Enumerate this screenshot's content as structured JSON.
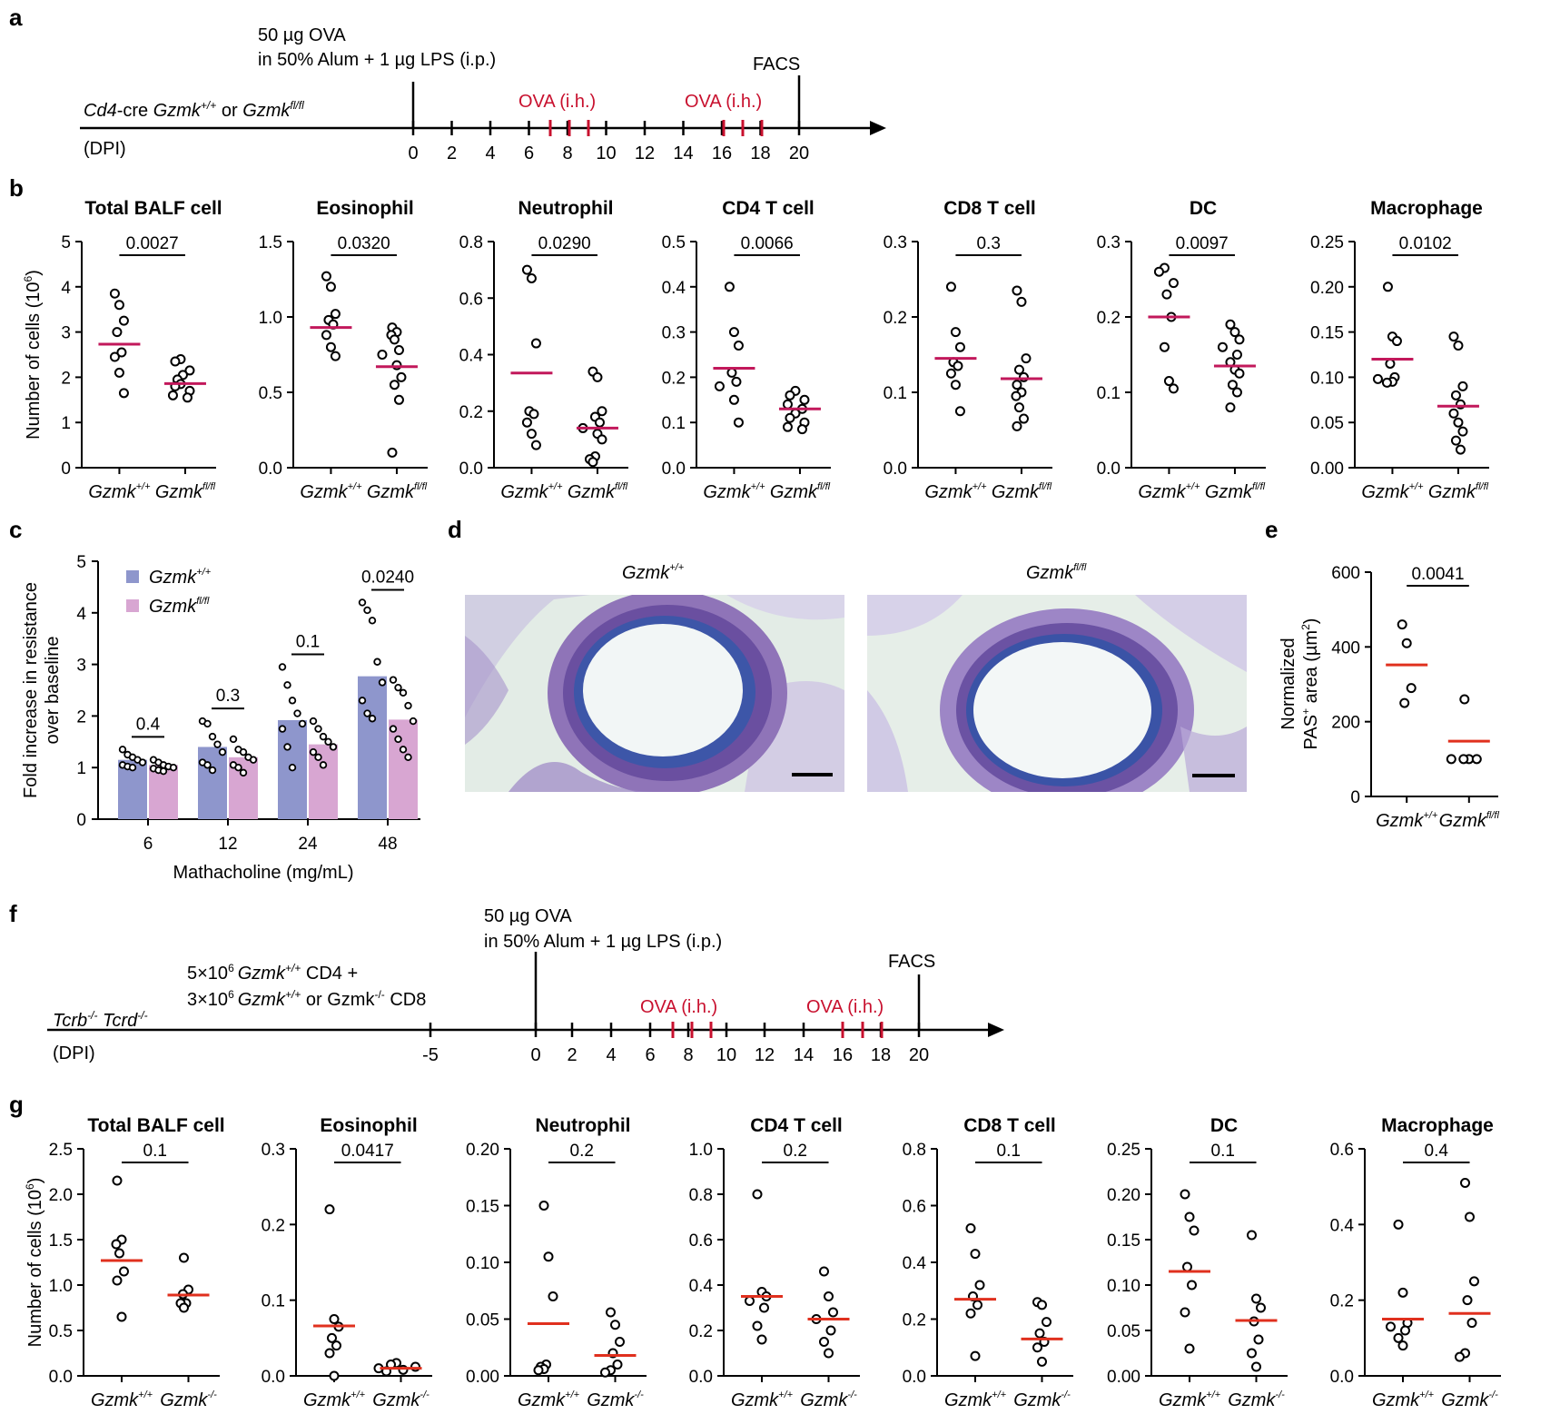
{
  "panel_labels": [
    "a",
    "b",
    "c",
    "d",
    "e",
    "f",
    "g"
  ],
  "colors": {
    "pink_mean": "#c2185b",
    "red_mean": "#e0301e",
    "bar_wt": "#8e96cc",
    "bar_fl": "#d8a6d2",
    "timeline_red": "#c8102e",
    "histology_bg": "#e3ece6",
    "histology_stain": "#5b3f93"
  },
  "timeline_a": {
    "injection_line1": "50 µg OVA",
    "injection_line2": "in 50% Alum + 1 µg LPS (i.p.)",
    "mouse_prefix": "Cd4",
    "mouse_mid": "-cre ",
    "gene": "Gzmk",
    "sup_wt": "+/+",
    "or": " or ",
    "sup_fl": "fl/fl",
    "dpi_label": "(DPI)",
    "ova_label_1": "OVA (i.h.)",
    "ova_label_2": "OVA (i.h.)",
    "facs_label": "FACS",
    "ticks": [
      "0",
      "2",
      "4",
      "6",
      "8",
      "10",
      "12",
      "14",
      "16",
      "18",
      "20"
    ]
  },
  "timeline_f": {
    "injection_line1": "50 µg OVA",
    "injection_line2": "in 50% Alum + 1 µg LPS (i.p.)",
    "transfer_line1_a": "5×10",
    "transfer_line1_sup": "6",
    "transfer_line1_gene": "Gzmk",
    "transfer_line1_sup2": "+/+",
    "transfer_line1_b": " CD4 +",
    "transfer_line2_a": "3×10",
    "transfer_line2_sup": "6",
    "transfer_line2_gene": "Gzmk",
    "transfer_line2_sup2": "+/+",
    "transfer_line2_b": " or Gzmk",
    "transfer_line2_sup3": "-/-",
    "transfer_line2_c": " CD8",
    "mouse_a": "Tcrb",
    "mouse_sup_a": "-/-",
    "mouse_b": " Tcrd",
    "mouse_sup_b": "-/-",
    "dpi_label": "(DPI)",
    "ova_label_1": "OVA (i.h.)",
    "ova_label_2": "OVA (i.h.)",
    "facs_label": "FACS",
    "ticks": [
      "-5",
      "0",
      "2",
      "4",
      "6",
      "8",
      "10",
      "12",
      "14",
      "16",
      "18",
      "20"
    ]
  },
  "histology": {
    "left_title": "Gzmk",
    "left_sup": "+/+",
    "right_title": "Gzmk",
    "right_sup": "fl/fl"
  },
  "chart_data": [
    {
      "panel": "b",
      "type": "scatter",
      "title": "Total BALF cell",
      "ylabel": "Number of cells (10",
      "ylabel_sup": "6",
      "ylabel_end": ")",
      "ylim": [
        0,
        5
      ],
      "yticks": [
        "0",
        "1",
        "2",
        "3",
        "4",
        "5"
      ],
      "groups": [
        "Gzmk+/+",
        "Gzmkfl/fl"
      ],
      "group_text": [
        "Gzmk",
        "Gzmk"
      ],
      "group_sup": [
        "+/+",
        "fl/fl"
      ],
      "series": [
        {
          "points": [
            3.85,
            3.6,
            3.25,
            3.0,
            2.55,
            2.45,
            2.1,
            1.65
          ],
          "mean": 2.73
        },
        {
          "points": [
            2.4,
            2.35,
            2.15,
            2.05,
            1.95,
            1.85,
            1.8,
            1.7,
            1.6,
            1.55
          ],
          "mean": 1.86
        }
      ],
      "pvalue": "0.0027"
    },
    {
      "panel": "b",
      "type": "scatter",
      "title": "Eosinophil",
      "ylim": [
        0,
        1.5
      ],
      "yticks": [
        "0.0",
        "0.5",
        "1.0",
        "1.5"
      ],
      "groups": [
        "Gzmk+/+",
        "Gzmkfl/fl"
      ],
      "group_text": [
        "Gzmk",
        "Gzmk"
      ],
      "group_sup": [
        "+/+",
        "fl/fl"
      ],
      "series": [
        {
          "points": [
            1.27,
            1.2,
            1.02,
            0.98,
            0.95,
            0.88,
            0.8,
            0.74
          ],
          "mean": 0.93
        },
        {
          "points": [
            0.93,
            0.9,
            0.88,
            0.85,
            0.78,
            0.75,
            0.68,
            0.6,
            0.55,
            0.45,
            0.1
          ],
          "mean": 0.67
        }
      ],
      "pvalue": "0.0320"
    },
    {
      "panel": "b",
      "type": "scatter",
      "title": "Neutrophil",
      "ylim": [
        0,
        0.8
      ],
      "yticks": [
        "0.0",
        "0.2",
        "0.4",
        "0.6",
        "0.8"
      ],
      "groups": [
        "Gzmk+/+",
        "Gzmkfl/fl"
      ],
      "group_text": [
        "Gzmk",
        "Gzmk"
      ],
      "group_sup": [
        "+/+",
        "fl/fl"
      ],
      "series": [
        {
          "points": [
            0.7,
            0.67,
            0.44,
            0.2,
            0.19,
            0.16,
            0.12,
            0.08
          ],
          "mean": 0.335
        },
        {
          "points": [
            0.34,
            0.32,
            0.2,
            0.18,
            0.16,
            0.14,
            0.12,
            0.1,
            0.04,
            0.03,
            0.02
          ],
          "mean": 0.14
        }
      ],
      "pvalue": "0.0290"
    },
    {
      "panel": "b",
      "type": "scatter",
      "title": "CD4 T cell",
      "ylim": [
        0,
        0.5
      ],
      "yticks": [
        "0.0",
        "0.1",
        "0.2",
        "0.3",
        "0.4",
        "0.5"
      ],
      "groups": [
        "Gzmk+/+",
        "Gzmkfl/fl"
      ],
      "group_text": [
        "Gzmk",
        "Gzmk"
      ],
      "group_sup": [
        "+/+",
        "fl/fl"
      ],
      "series": [
        {
          "points": [
            0.4,
            0.3,
            0.27,
            0.21,
            0.19,
            0.18,
            0.15,
            0.1
          ],
          "mean": 0.22
        },
        {
          "points": [
            0.17,
            0.16,
            0.15,
            0.14,
            0.13,
            0.12,
            0.11,
            0.1,
            0.09,
            0.085
          ],
          "mean": 0.13
        }
      ],
      "pvalue": "0.0066"
    },
    {
      "panel": "b",
      "type": "scatter",
      "title": "CD8 T cell",
      "ylim": [
        0,
        0.3
      ],
      "yticks": [
        "0.0",
        "0.1",
        "0.2",
        "0.3"
      ],
      "groups": [
        "Gzmk+/+",
        "Gzmkfl/fl"
      ],
      "group_text": [
        "Gzmk",
        "Gzmk"
      ],
      "group_sup": [
        "+/+",
        "fl/fl"
      ],
      "series": [
        {
          "points": [
            0.24,
            0.18,
            0.16,
            0.14,
            0.135,
            0.125,
            0.11,
            0.075
          ],
          "mean": 0.145
        },
        {
          "points": [
            0.235,
            0.22,
            0.145,
            0.13,
            0.12,
            0.11,
            0.1,
            0.095,
            0.08,
            0.065,
            0.055
          ],
          "mean": 0.118
        }
      ],
      "pvalue": "0.3"
    },
    {
      "panel": "b",
      "type": "scatter",
      "title": "DC",
      "ylim": [
        0,
        0.3
      ],
      "yticks": [
        "0.0",
        "0.1",
        "0.2",
        "0.3"
      ],
      "groups": [
        "Gzmk+/+",
        "Gzmkfl/fl"
      ],
      "group_text": [
        "Gzmk",
        "Gzmk"
      ],
      "group_sup": [
        "+/+",
        "fl/fl"
      ],
      "series": [
        {
          "points": [
            0.265,
            0.26,
            0.245,
            0.23,
            0.2,
            0.16,
            0.115,
            0.105
          ],
          "mean": 0.2
        },
        {
          "points": [
            0.19,
            0.18,
            0.17,
            0.16,
            0.15,
            0.14,
            0.13,
            0.125,
            0.11,
            0.1,
            0.08
          ],
          "mean": 0.135
        }
      ],
      "pvalue": "0.0097"
    },
    {
      "panel": "b",
      "type": "scatter",
      "title": "Macrophage",
      "ylim": [
        0,
        0.25
      ],
      "yticks": [
        "0.00",
        "0.05",
        "0.10",
        "0.15",
        "0.20",
        "0.25"
      ],
      "groups": [
        "Gzmk+/+",
        "Gzmkfl/fl"
      ],
      "group_text": [
        "Gzmk",
        "Gzmk"
      ],
      "group_sup": [
        "+/+",
        "fl/fl"
      ],
      "series": [
        {
          "points": [
            0.2,
            0.145,
            0.14,
            0.115,
            0.1,
            0.098,
            0.095,
            0.094
          ],
          "mean": 0.12
        },
        {
          "points": [
            0.145,
            0.135,
            0.09,
            0.08,
            0.07,
            0.06,
            0.05,
            0.04,
            0.03,
            0.02
          ],
          "mean": 0.068
        }
      ],
      "pvalue": "0.0102"
    },
    {
      "panel": "c",
      "type": "bar",
      "ylabel_line1": "Fold increase in resistance",
      "ylabel_line2": "over baseline",
      "xlabel": "Mathacholine (mg/mL)",
      "ylim": [
        0,
        5
      ],
      "yticks": [
        "0",
        "1",
        "2",
        "3",
        "4",
        "5"
      ],
      "categories": [
        "6",
        "12",
        "24",
        "48"
      ],
      "legend": [
        {
          "text": "Gzmk",
          "sup": "+/+"
        },
        {
          "text": "Gzmk",
          "sup": "fl/fl"
        }
      ],
      "series": [
        {
          "name": "Gzmk+/+",
          "values": [
            1.15,
            1.4,
            1.92,
            2.77
          ],
          "points": [
            [
              1.35,
              1.25,
              1.2,
              1.15,
              1.1,
              1.05,
              1.02,
              1.0
            ],
            [
              1.9,
              1.85,
              1.6,
              1.45,
              1.3,
              1.1,
              1.05,
              0.95
            ],
            [
              2.95,
              2.6,
              2.3,
              2.05,
              1.85,
              1.75,
              1.4,
              1.0
            ],
            [
              4.2,
              4.05,
              3.85,
              3.05,
              2.65,
              2.3,
              2.05,
              1.95
            ]
          ]
        },
        {
          "name": "Gzmkfl/fl",
          "values": [
            1.05,
            1.2,
            1.45,
            1.93
          ],
          "points": [
            [
              1.15,
              1.1,
              1.05,
              1.02,
              1.0,
              0.98,
              0.95,
              0.93
            ],
            [
              1.55,
              1.35,
              1.3,
              1.2,
              1.15,
              1.05,
              1.0,
              0.9
            ],
            [
              1.9,
              1.75,
              1.6,
              1.5,
              1.4,
              1.3,
              1.2,
              1.05
            ],
            [
              2.7,
              2.55,
              2.45,
              2.2,
              1.9,
              1.75,
              1.55,
              1.35,
              1.2
            ]
          ]
        }
      ],
      "pvalues": [
        "0.4",
        "0.3",
        "0.1",
        "0.0240"
      ]
    },
    {
      "panel": "e",
      "type": "scatter",
      "ylabel_line1": "Normalized",
      "ylabel_line2a": "PAS",
      "ylabel_line2_sup": "+",
      "ylabel_line2b": " area (µm",
      "ylabel_line2_sup2": "2",
      "ylabel_line2c": ")",
      "ylim": [
        0,
        600
      ],
      "yticks": [
        "0",
        "200",
        "400",
        "600"
      ],
      "groups": [
        "Gzmk+/+",
        "Gzmkfl/fl"
      ],
      "group_text": [
        "Gzmk",
        "Gzmk"
      ],
      "group_sup": [
        "+/+",
        "fl/fl"
      ],
      "series": [
        {
          "points": [
            460,
            410,
            290,
            250
          ],
          "mean": 352
        },
        {
          "points": [
            260,
            100,
            100,
            100,
            100
          ],
          "mean": 148
        }
      ],
      "pvalue": "0.0041"
    },
    {
      "panel": "g",
      "type": "scatter",
      "title": "Total BALF cell",
      "ylabel": "Number of cells (10",
      "ylabel_sup": "6",
      "ylabel_end": ")",
      "ylim": [
        0,
        2.5
      ],
      "yticks": [
        "0.0",
        "0.5",
        "1.0",
        "1.5",
        "2.0",
        "2.5"
      ],
      "groups": [
        "Gzmk+/+",
        "Gzmk-/-"
      ],
      "group_text": [
        "Gzmk",
        "Gzmk"
      ],
      "group_sup": [
        "+/+",
        "-/-"
      ],
      "series": [
        {
          "points": [
            2.15,
            1.5,
            1.45,
            1.35,
            1.15,
            1.05,
            0.65
          ],
          "mean": 1.27
        },
        {
          "points": [
            1.3,
            0.95,
            0.9,
            0.8,
            0.8,
            0.75
          ],
          "mean": 0.89
        }
      ],
      "pvalue": "0.1"
    },
    {
      "panel": "g",
      "type": "scatter",
      "title": "Eosinophil",
      "ylim": [
        0,
        0.3
      ],
      "yticks": [
        "0.0",
        "0.1",
        "0.2",
        "0.3"
      ],
      "groups": [
        "Gzmk+/+",
        "Gzmk-/-"
      ],
      "group_text": [
        "Gzmk",
        "Gzmk"
      ],
      "group_sup": [
        "+/+",
        "-/-"
      ],
      "series": [
        {
          "points": [
            0.22,
            0.075,
            0.065,
            0.05,
            0.04,
            0.03,
            0.0
          ],
          "mean": 0.066
        },
        {
          "points": [
            0.017,
            0.015,
            0.012,
            0.01,
            0.008,
            0.006
          ],
          "mean": 0.01
        }
      ],
      "pvalue": "0.0417"
    },
    {
      "panel": "g",
      "type": "scatter",
      "title": "Neutrophil",
      "ylim": [
        0,
        0.2
      ],
      "yticks": [
        "0.00",
        "0.05",
        "0.10",
        "0.15",
        "0.20"
      ],
      "groups": [
        "Gzmk+/+",
        "Gzmk-/-"
      ],
      "group_text": [
        "Gzmk",
        "Gzmk"
      ],
      "group_sup": [
        "+/+",
        "-/-"
      ],
      "series": [
        {
          "points": [
            0.15,
            0.105,
            0.07,
            0.01,
            0.008,
            0.006,
            0.005
          ],
          "mean": 0.046
        },
        {
          "points": [
            0.056,
            0.045,
            0.03,
            0.02,
            0.01,
            0.005,
            0.003
          ],
          "mean": 0.018
        }
      ],
      "pvalue": "0.2"
    },
    {
      "panel": "g",
      "type": "scatter",
      "title": "CD4 T cell",
      "ylim": [
        0,
        1.0
      ],
      "yticks": [
        "0.0",
        "0.2",
        "0.4",
        "0.6",
        "0.8",
        "1.0"
      ],
      "groups": [
        "Gzmk+/+",
        "Gzmk-/-"
      ],
      "group_text": [
        "Gzmk",
        "Gzmk"
      ],
      "group_sup": [
        "+/+",
        "-/-"
      ],
      "series": [
        {
          "points": [
            0.8,
            0.37,
            0.35,
            0.33,
            0.3,
            0.22,
            0.16
          ],
          "mean": 0.35
        },
        {
          "points": [
            0.46,
            0.35,
            0.28,
            0.25,
            0.2,
            0.15,
            0.1
          ],
          "mean": 0.25
        }
      ],
      "pvalue": "0.2"
    },
    {
      "panel": "g",
      "type": "scatter",
      "title": "CD8 T cell",
      "ylim": [
        0,
        0.8
      ],
      "yticks": [
        "0.0",
        "0.2",
        "0.4",
        "0.6",
        "0.8"
      ],
      "groups": [
        "Gzmk+/+",
        "Gzmk-/-"
      ],
      "group_text": [
        "Gzmk",
        "Gzmk"
      ],
      "group_sup": [
        "+/+",
        "-/-"
      ],
      "series": [
        {
          "points": [
            0.52,
            0.43,
            0.32,
            0.28,
            0.25,
            0.22,
            0.07
          ],
          "mean": 0.27
        },
        {
          "points": [
            0.26,
            0.25,
            0.19,
            0.15,
            0.12,
            0.1,
            0.05
          ],
          "mean": 0.13
        }
      ],
      "pvalue": "0.1"
    },
    {
      "panel": "g",
      "type": "scatter",
      "title": "DC",
      "ylim": [
        0,
        0.25
      ],
      "yticks": [
        "0.00",
        "0.05",
        "0.10",
        "0.15",
        "0.20",
        "0.25"
      ],
      "groups": [
        "Gzmk+/+",
        "Gzmk-/-"
      ],
      "group_text": [
        "Gzmk",
        "Gzmk"
      ],
      "group_sup": [
        "+/+",
        "-/-"
      ],
      "series": [
        {
          "points": [
            0.2,
            0.175,
            0.16,
            0.12,
            0.1,
            0.07,
            0.03
          ],
          "mean": 0.115
        },
        {
          "points": [
            0.155,
            0.085,
            0.075,
            0.06,
            0.04,
            0.025,
            0.01
          ],
          "mean": 0.061
        }
      ],
      "pvalue": "0.1"
    },
    {
      "panel": "g",
      "type": "scatter",
      "title": "Macrophage",
      "ylim": [
        0,
        0.6
      ],
      "yticks": [
        "0.0",
        "0.2",
        "0.4",
        "0.6"
      ],
      "groups": [
        "Gzmk+/+",
        "Gzmk-/-"
      ],
      "group_text": [
        "Gzmk",
        "Gzmk"
      ],
      "group_sup": [
        "+/+",
        "-/-"
      ],
      "series": [
        {
          "points": [
            0.4,
            0.22,
            0.14,
            0.13,
            0.12,
            0.1,
            0.08
          ],
          "mean": 0.15
        },
        {
          "points": [
            0.51,
            0.42,
            0.25,
            0.2,
            0.14,
            0.06,
            0.05
          ],
          "mean": 0.165
        }
      ],
      "pvalue": "0.4"
    }
  ]
}
